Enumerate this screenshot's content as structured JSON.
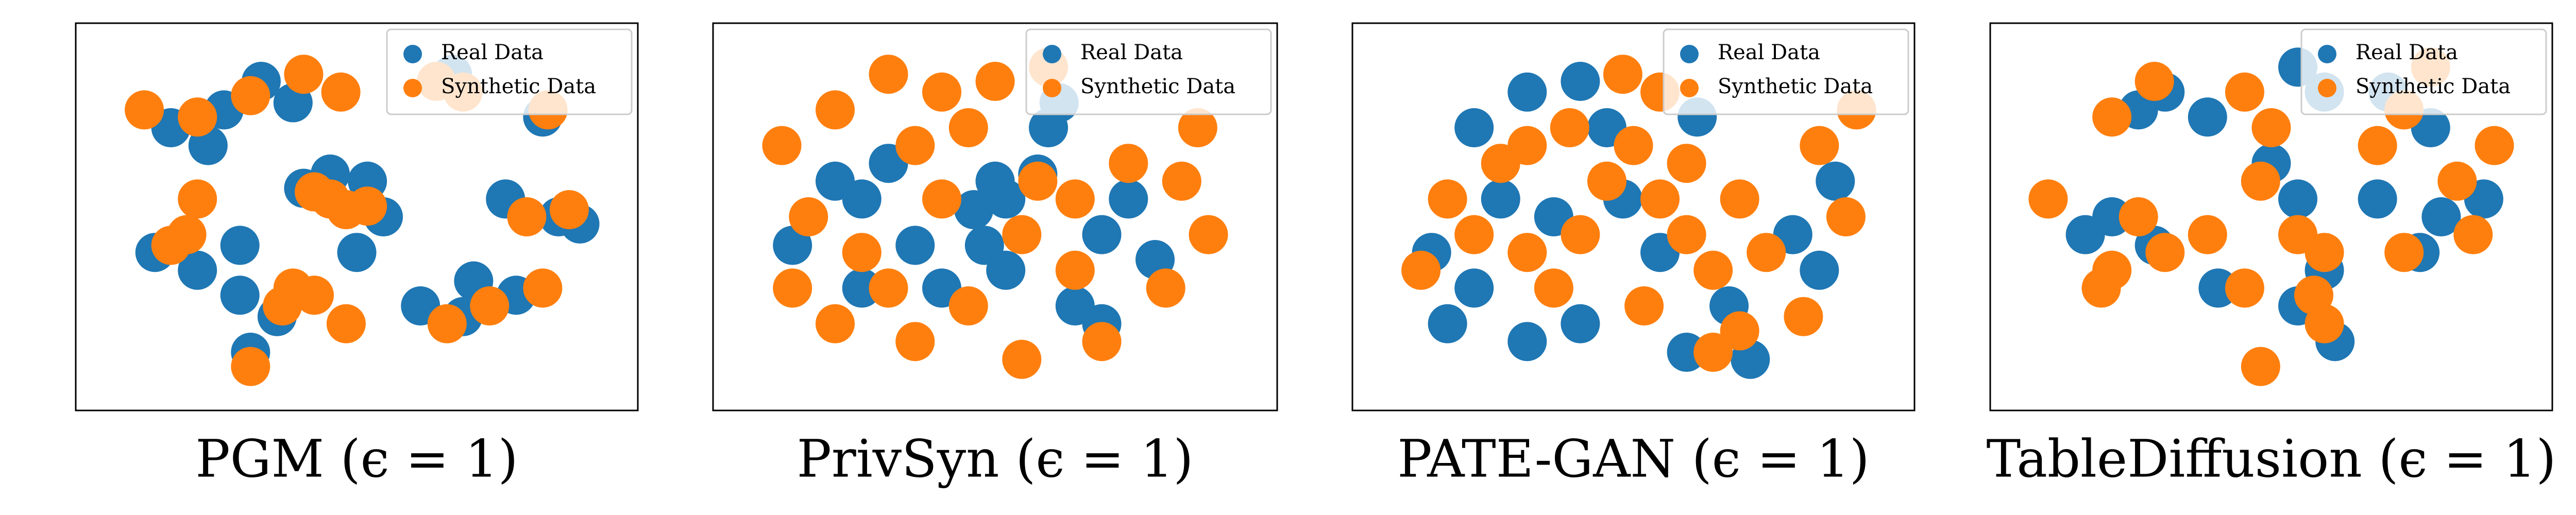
{
  "chart_data": [
    {
      "type": "scatter",
      "title": "PGM (ϵ = 1)",
      "xlim": [
        0,
        100
      ],
      "ylim": [
        0,
        100
      ],
      "legend": "upper right",
      "series": [
        {
          "name": "Real Data",
          "color": "#1f77b4",
          "x": [
            15,
            25,
            32,
            38,
            22,
            45,
            52,
            55,
            40,
            12,
            20,
            28,
            35,
            28,
            62,
            70,
            72,
            80,
            78,
            88,
            92,
            68,
            85,
            30,
            50
          ],
          "y": [
            75,
            80,
            88,
            82,
            70,
            62,
            60,
            50,
            58,
            40,
            35,
            28,
            22,
            42,
            25,
            22,
            32,
            28,
            55,
            50,
            48,
            90,
            78,
            12,
            40
          ]
        },
        {
          "name": "Synthetic Data",
          "color": "#ff7f0e",
          "x": [
            10,
            20,
            30,
            40,
            47,
            45,
            48,
            42,
            52,
            15,
            18,
            38,
            42,
            36,
            65,
            70,
            86,
            82,
            90,
            75,
            85,
            67,
            30,
            20,
            48
          ],
          "y": [
            80,
            78,
            84,
            90,
            85,
            55,
            52,
            57,
            53,
            42,
            45,
            30,
            28,
            25,
            88,
            85,
            80,
            50,
            52,
            25,
            30,
            20,
            8,
            55,
            20
          ]
        }
      ]
    },
    {
      "type": "scatter",
      "title": "PrivSyn (ϵ = 1)",
      "xlim": [
        0,
        100
      ],
      "ylim": [
        0,
        100
      ],
      "legend": "upper right",
      "series": [
        {
          "name": "Real Data",
          "color": "#1f77b4",
          "x": [
            20,
            25,
            12,
            35,
            50,
            52,
            46,
            58,
            70,
            80,
            48,
            52,
            62,
            60,
            25,
            65,
            70,
            40,
            30,
            75
          ],
          "y": [
            60,
            55,
            42,
            42,
            60,
            55,
            52,
            62,
            45,
            38,
            42,
            35,
            82,
            75,
            30,
            25,
            20,
            30,
            65,
            55
          ]
        },
        {
          "name": "Synthetic Data",
          "color": "#ff7f0e",
          "x": [
            10,
            20,
            30,
            40,
            50,
            60,
            45,
            35,
            15,
            25,
            30,
            20,
            35,
            45,
            55,
            58,
            65,
            75,
            85,
            90,
            82,
            70,
            55,
            65,
            40,
            12,
            88
          ],
          "y": [
            70,
            80,
            90,
            85,
            88,
            92,
            75,
            70,
            50,
            40,
            30,
            20,
            15,
            25,
            45,
            60,
            55,
            65,
            60,
            45,
            30,
            15,
            10,
            35,
            55,
            30,
            75
          ]
        }
      ]
    },
    {
      "type": "scatter",
      "title": "PATE-GAN (ϵ = 1)",
      "xlim": [
        0,
        100
      ],
      "ylim": [
        0,
        100
      ],
      "legend": "upper right",
      "series": [
        {
          "name": "Real Data",
          "color": "#1f77b4",
          "x": [
            30,
            40,
            12,
            20,
            40,
            30,
            48,
            62,
            80,
            85,
            68,
            60,
            72,
            20,
            35,
            55,
            88,
            15,
            45,
            25
          ],
          "y": [
            85,
            88,
            40,
            30,
            20,
            15,
            55,
            78,
            45,
            35,
            25,
            12,
            10,
            75,
            50,
            40,
            60,
            20,
            75,
            55
          ]
        },
        {
          "name": "Synthetic Data",
          "color": "#ff7f0e",
          "x": [
            48,
            55,
            50,
            45,
            40,
            30,
            25,
            15,
            10,
            20,
            35,
            55,
            60,
            65,
            70,
            75,
            90,
            92,
            85,
            65,
            70,
            52,
            38,
            30,
            60,
            82
          ],
          "y": [
            90,
            85,
            70,
            60,
            45,
            40,
            65,
            55,
            35,
            45,
            30,
            55,
            45,
            35,
            55,
            40,
            50,
            80,
            70,
            12,
            18,
            25,
            75,
            70,
            65,
            22
          ]
        }
      ]
    },
    {
      "type": "scatter",
      "title": "TableDiffusion (ϵ = 1)",
      "xlim": [
        0,
        100
      ],
      "ylim": [
        0,
        100
      ],
      "legend": "upper right",
      "series": [
        {
          "name": "Real Data",
          "color": "#1f77b4",
          "x": [
            25,
            30,
            38,
            55,
            60,
            72,
            80,
            70,
            78,
            82,
            55,
            50,
            20,
            15,
            40,
            55,
            60,
            90,
            62,
            28
          ],
          "y": [
            80,
            85,
            78,
            92,
            85,
            85,
            75,
            55,
            40,
            50,
            55,
            65,
            50,
            45,
            30,
            25,
            35,
            55,
            15,
            42
          ]
        },
        {
          "name": "Synthetic Data",
          "color": "#ff7f0e",
          "x": [
            20,
            28,
            45,
            50,
            48,
            55,
            60,
            58,
            70,
            75,
            80,
            85,
            92,
            30,
            25,
            20,
            38,
            45,
            8,
            60,
            75,
            88,
            48,
            18
          ],
          "y": [
            78,
            88,
            85,
            75,
            60,
            45,
            40,
            28,
            70,
            80,
            92,
            60,
            70,
            40,
            50,
            35,
            45,
            30,
            55,
            20,
            40,
            45,
            8,
            30
          ]
        }
      ]
    }
  ]
}
